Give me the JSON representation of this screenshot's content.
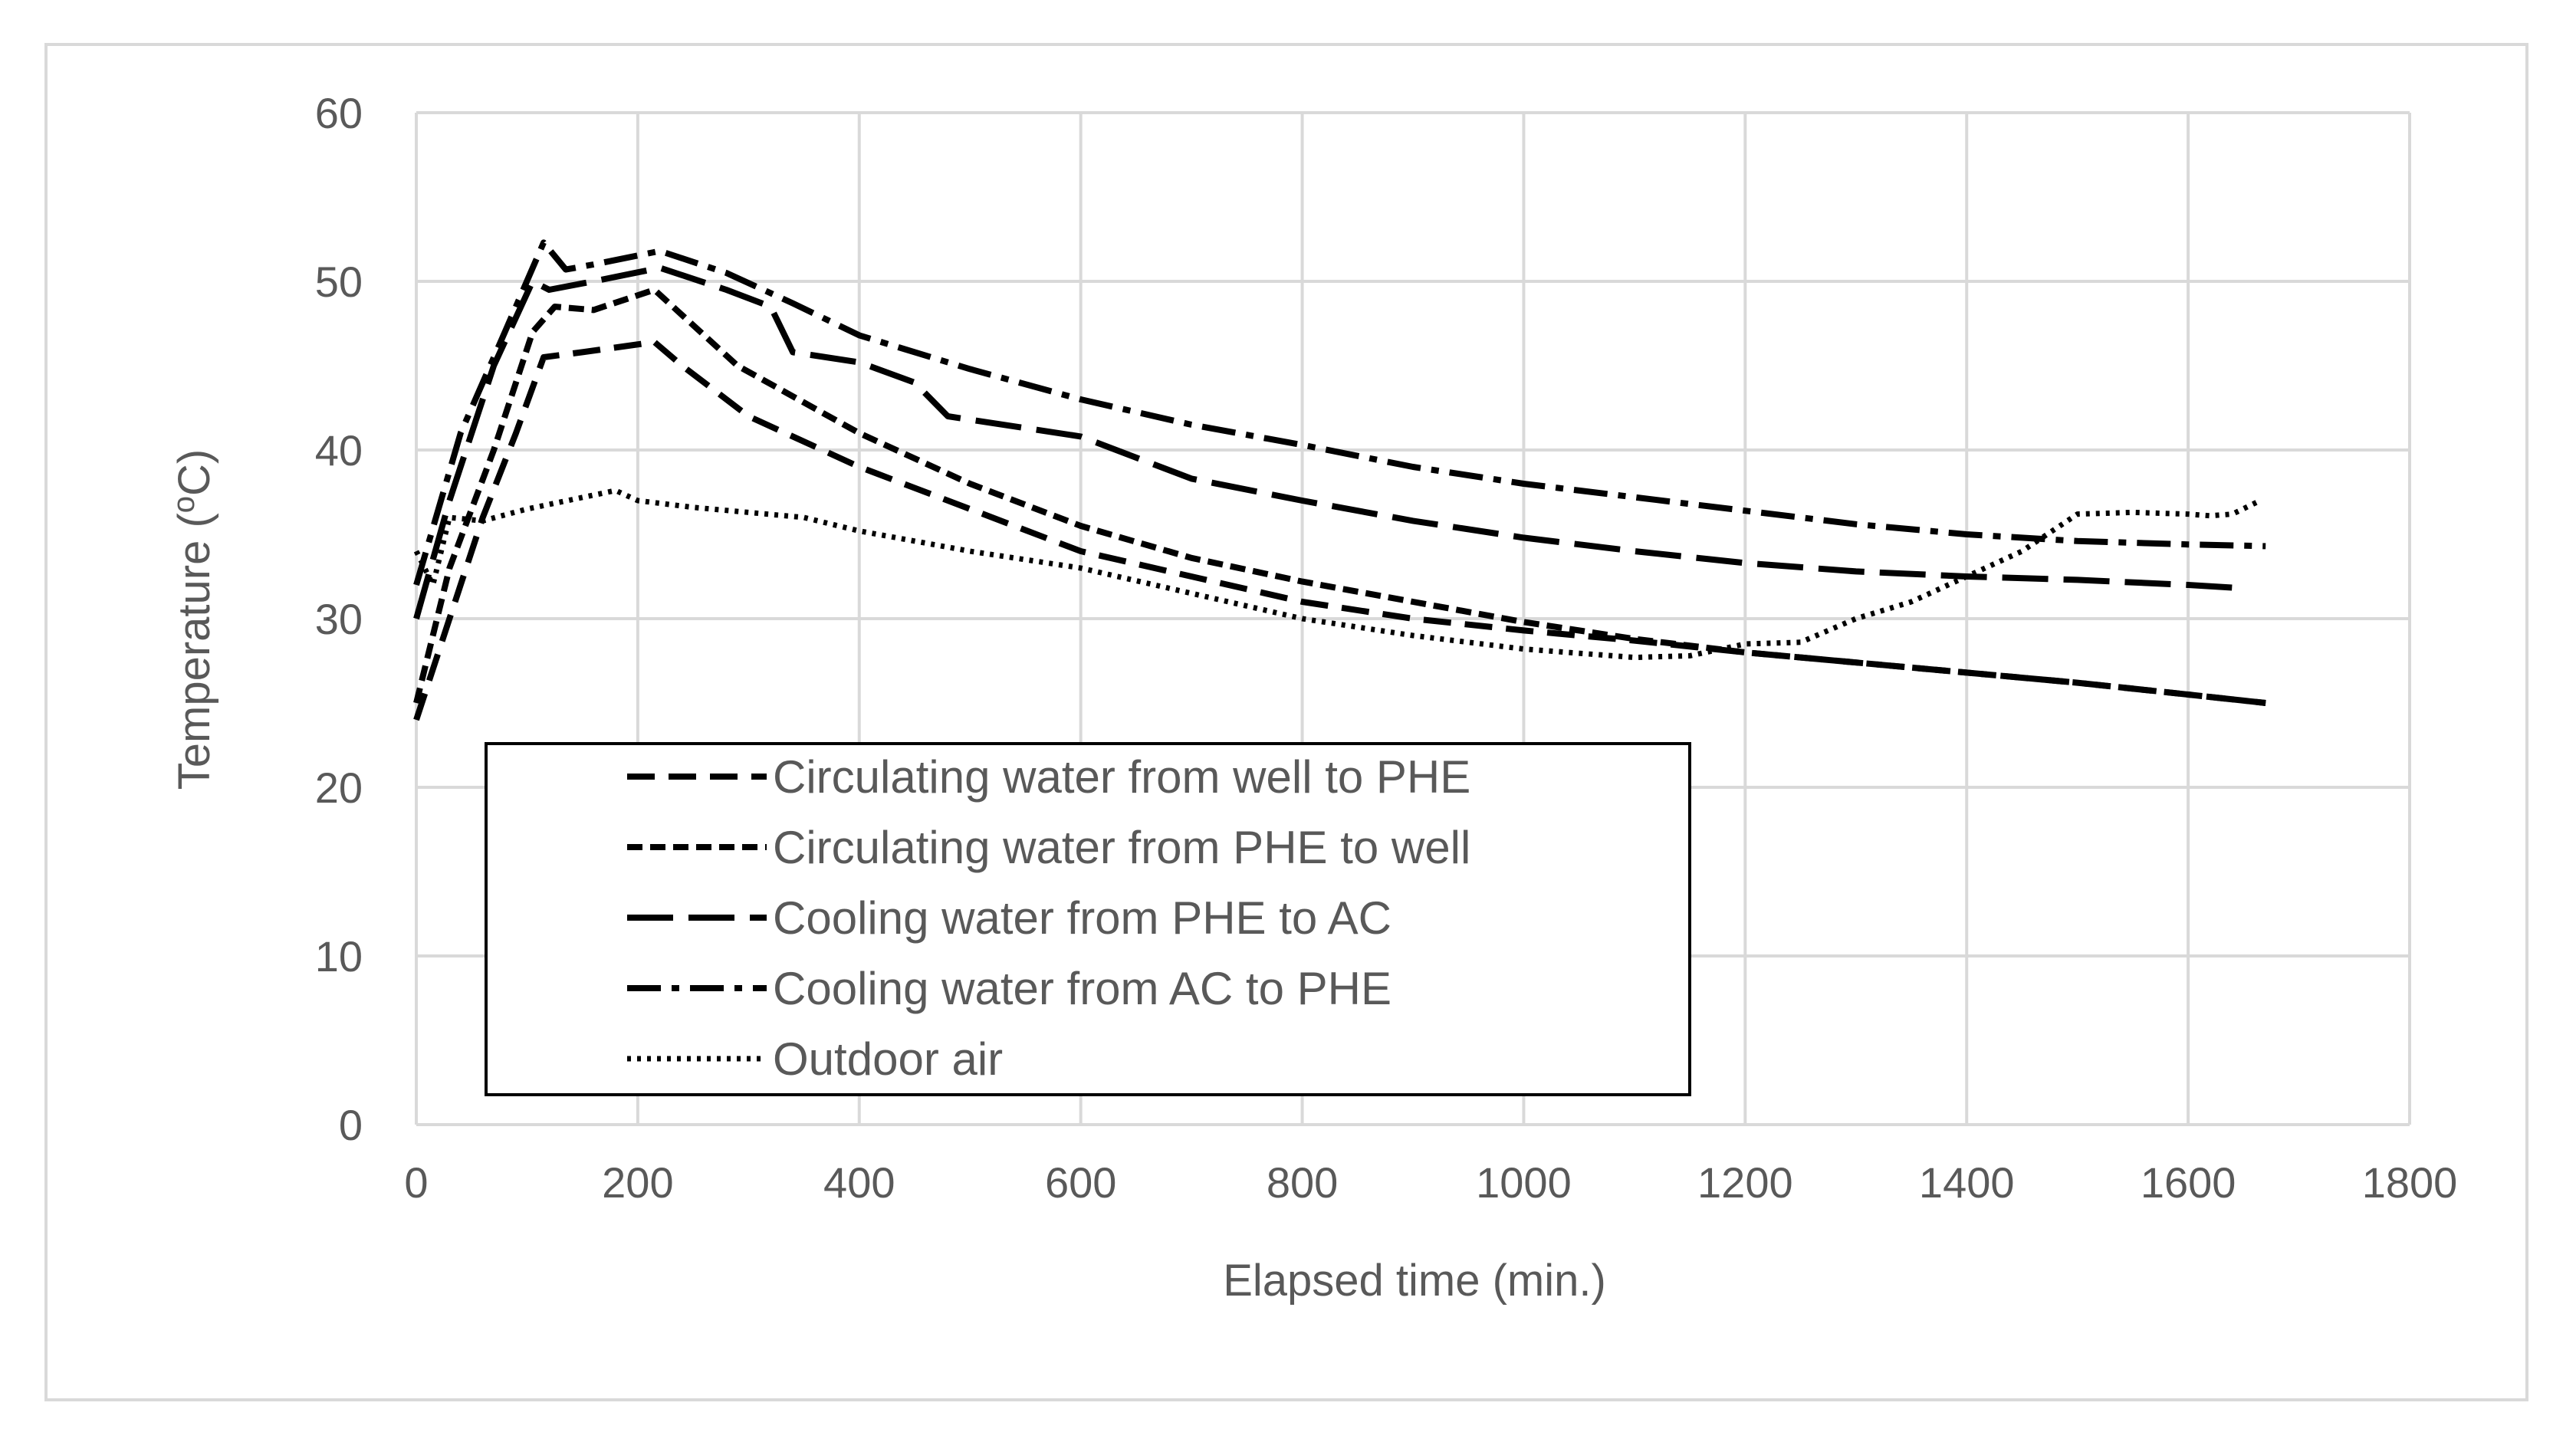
{
  "chart_data": {
    "type": "line",
    "title": "",
    "xlabel": "Elapsed time (min.)",
    "ylabel": {
      "base": "Temperature (",
      "sup": "o",
      "tail": "C)"
    },
    "xlim": [
      0,
      1800
    ],
    "ylim": [
      0,
      60
    ],
    "xticks": [
      0,
      200,
      400,
      600,
      800,
      1000,
      1200,
      1400,
      1600,
      1800
    ],
    "yticks": [
      0,
      10,
      20,
      30,
      40,
      50,
      60
    ],
    "grid": true,
    "legend_position": "lower-left inside plot",
    "series": [
      {
        "name": "Circulating water from well to PHE",
        "style": "dash",
        "x": [
          0,
          30,
          60,
          90,
          115,
          150,
          215,
          240,
          300,
          400,
          500,
          600,
          700,
          800,
          900,
          1000,
          1100,
          1200,
          1300,
          1400,
          1500,
          1600,
          1670
        ],
        "y": [
          24,
          30,
          36,
          41,
          45.5,
          45.8,
          46.4,
          45,
          42,
          39,
          36.5,
          34,
          32.5,
          31,
          30,
          29.3,
          28.7,
          28,
          27.4,
          26.8,
          26.2,
          25.5,
          25
        ]
      },
      {
        "name": "Circulating water from PHE to well",
        "style": "short-dash",
        "x": [
          0,
          30,
          70,
          105,
          125,
          160,
          215,
          240,
          290,
          400,
          500,
          600,
          700,
          800,
          900,
          1000,
          1100,
          1200,
          1300,
          1400,
          1500,
          1600,
          1670
        ],
        "y": [
          25,
          33,
          40,
          47,
          48.5,
          48.3,
          49.5,
          48,
          45,
          41,
          38,
          35.5,
          33.6,
          32.2,
          31,
          29.8,
          28.8,
          28,
          27.4,
          26.8,
          26.2,
          25.5,
          25
        ]
      },
      {
        "name": "Cooling water from PHE to AC",
        "style": "long-dash",
        "x": [
          0,
          30,
          70,
          105,
          120,
          160,
          220,
          280,
          320,
          340,
          400,
          450,
          480,
          600,
          700,
          800,
          900,
          1000,
          1100,
          1200,
          1300,
          1400,
          1500,
          1600,
          1650
        ],
        "y": [
          30,
          37,
          45,
          50,
          49.5,
          50,
          50.8,
          49.5,
          48.5,
          45.8,
          45.2,
          44,
          42,
          40.8,
          38.3,
          37,
          35.8,
          34.8,
          34,
          33.3,
          32.8,
          32.5,
          32.3,
          32,
          31.8
        ]
      },
      {
        "name": "Cooling water from AC to PHE",
        "style": "dash-dot",
        "x": [
          0,
          40,
          80,
          115,
          135,
          160,
          220,
          280,
          340,
          400,
          500,
          600,
          700,
          800,
          900,
          1000,
          1100,
          1200,
          1300,
          1400,
          1500,
          1600,
          1670
        ],
        "y": [
          32,
          41,
          47,
          52.3,
          50.7,
          51,
          51.8,
          50.5,
          48.7,
          46.8,
          44.8,
          43,
          41.5,
          40.3,
          39,
          38,
          37.2,
          36.4,
          35.6,
          35,
          34.6,
          34.4,
          34.3
        ]
      },
      {
        "name": "Outdoor air",
        "style": "dot",
        "x": [
          0,
          15,
          30,
          60,
          100,
          180,
          200,
          250,
          300,
          350,
          400,
          500,
          600,
          700,
          800,
          900,
          1000,
          1100,
          1150,
          1200,
          1250,
          1300,
          1350,
          1400,
          1450,
          1500,
          1550,
          1600,
          1620,
          1640,
          1665
        ],
        "y": [
          34,
          32,
          36,
          35.8,
          36.5,
          37.6,
          37,
          36.6,
          36.3,
          36,
          35.2,
          34,
          33,
          31.5,
          30,
          29,
          28.2,
          27.7,
          27.8,
          28.5,
          28.6,
          30,
          31,
          32.5,
          34,
          36.2,
          36.3,
          36.2,
          36.1,
          36.2,
          37
        ]
      }
    ]
  }
}
